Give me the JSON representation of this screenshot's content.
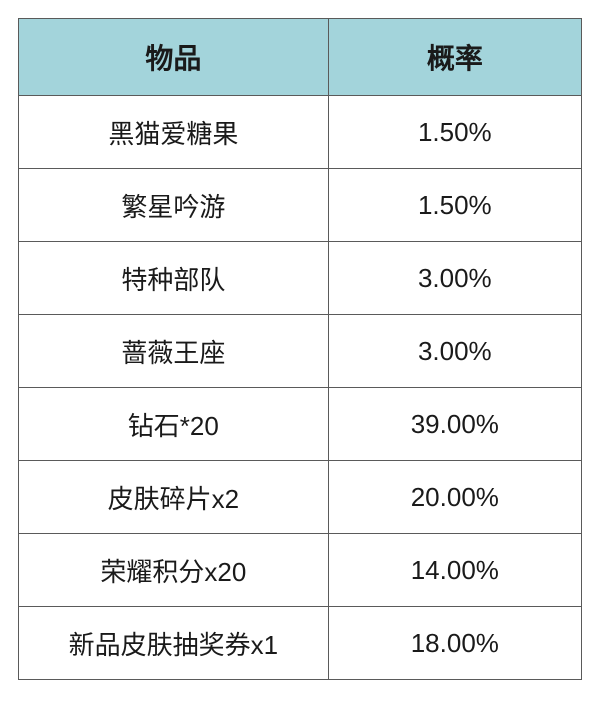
{
  "table": {
    "type": "table",
    "columns": [
      {
        "key": "item",
        "label": "物品",
        "width_pct": 55,
        "align": "center"
      },
      {
        "key": "rate",
        "label": "概率",
        "width_pct": 45,
        "align": "center"
      }
    ],
    "rows": [
      {
        "item": "黑猫爱糖果",
        "rate": "1.50%"
      },
      {
        "item": "繁星吟游",
        "rate": "1.50%"
      },
      {
        "item": "特种部队",
        "rate": "3.00%"
      },
      {
        "item": "蔷薇王座",
        "rate": "3.00%"
      },
      {
        "item": "钻石*20",
        "rate": "39.00%"
      },
      {
        "item": "皮肤碎片x2",
        "rate": "20.00%"
      },
      {
        "item": "荣耀积分x20",
        "rate": "14.00%"
      },
      {
        "item": "新品皮肤抽奖券x1",
        "rate": "18.00%"
      }
    ],
    "header_bg_color": "#a3d4db",
    "header_text_color": "#1a1a1a",
    "header_fontsize": 28,
    "header_fontweight": "bold",
    "cell_bg_color": "#ffffff",
    "cell_text_color": "#1a1a1a",
    "cell_fontsize": 26,
    "border_color": "#5a5a5a",
    "header_row_height": 77,
    "body_row_height": 73,
    "background_color": "#ffffff"
  }
}
